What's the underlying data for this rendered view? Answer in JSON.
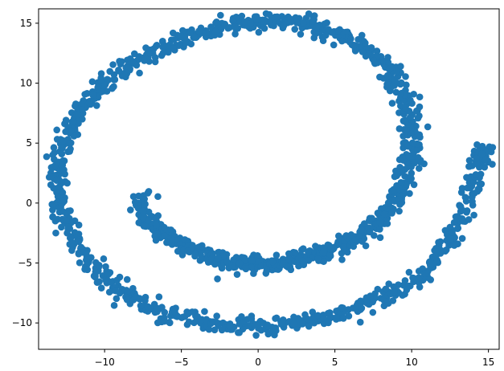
{
  "chart_data": {
    "type": "scatter",
    "title": "",
    "xlabel": "",
    "ylabel": "",
    "xlim": [
      -14.3,
      15.7
    ],
    "ylim": [
      -12.2,
      16.2
    ],
    "x_ticks": [
      -10,
      -5,
      0,
      5,
      10,
      15
    ],
    "y_ticks": [
      -10,
      -5,
      0,
      5,
      10,
      15
    ],
    "x_tick_labels": [
      "−10",
      "−5",
      "0",
      "5",
      "10",
      "15"
    ],
    "y_tick_labels": [
      "−10",
      "−5",
      "0",
      "5",
      "10",
      "15"
    ],
    "grid": false,
    "legend": false,
    "marker_color": "#1f77b4",
    "description_shape": "Swiss-roll spiral projection: an inner arc around (-8,-1)→(0,-5)→(7,-3), a large loop through (10,5), (0,15), (-12,8), (-12,-3), and an outer arc through (0,-10) ending near (14.5,4.5).",
    "series": [
      {
        "points": [
          [
            -7.5,
            0.8
          ],
          [
            -7.8,
            -0.2
          ],
          [
            -7.6,
            -1.0
          ],
          [
            -7.0,
            -1.6
          ],
          [
            -6.6,
            -2.0
          ],
          [
            -6.2,
            -2.5
          ],
          [
            -5.8,
            -2.9
          ],
          [
            -5.2,
            -3.3
          ],
          [
            -4.7,
            -3.6
          ],
          [
            -4.2,
            -4.0
          ],
          [
            -3.6,
            -4.3
          ],
          [
            -3.0,
            -4.5
          ],
          [
            -2.5,
            -4.7
          ],
          [
            -2.0,
            -4.9
          ],
          [
            -1.5,
            -5.0
          ],
          [
            -1.0,
            -5.1
          ],
          [
            -0.5,
            -5.2
          ],
          [
            0.0,
            -5.2
          ],
          [
            0.5,
            -5.2
          ],
          [
            1.0,
            -5.1
          ],
          [
            1.5,
            -5.0
          ],
          [
            2.0,
            -4.9
          ],
          [
            2.5,
            -4.7
          ],
          [
            3.0,
            -4.6
          ],
          [
            3.5,
            -4.4
          ],
          [
            4.0,
            -4.2
          ],
          [
            4.5,
            -4.0
          ],
          [
            5.0,
            -3.8
          ],
          [
            5.5,
            -3.5
          ],
          [
            6.0,
            -3.2
          ],
          [
            6.5,
            -2.8
          ],
          [
            7.0,
            -2.4
          ],
          [
            7.5,
            -2.0
          ],
          [
            8.0,
            -1.5
          ],
          [
            8.4,
            -0.9
          ],
          [
            8.8,
            -0.2
          ],
          [
            9.1,
            0.5
          ],
          [
            9.4,
            1.3
          ],
          [
            9.6,
            2.1
          ],
          [
            9.8,
            3.0
          ],
          [
            9.9,
            3.9
          ],
          [
            10.0,
            4.8
          ],
          [
            10.0,
            5.7
          ],
          [
            10.0,
            6.6
          ],
          [
            9.9,
            7.5
          ],
          [
            9.7,
            8.4
          ],
          [
            9.4,
            9.2
          ],
          [
            9.0,
            10.0
          ],
          [
            8.6,
            10.8
          ],
          [
            8.1,
            11.5
          ],
          [
            7.6,
            12.2
          ],
          [
            7.0,
            12.8
          ],
          [
            6.3,
            13.4
          ],
          [
            5.6,
            13.9
          ],
          [
            4.8,
            14.3
          ],
          [
            4.0,
            14.6
          ],
          [
            3.2,
            14.9
          ],
          [
            2.4,
            15.0
          ],
          [
            1.6,
            15.1
          ],
          [
            0.8,
            15.2
          ],
          [
            0.0,
            15.2
          ],
          [
            -0.8,
            15.1
          ],
          [
            -1.6,
            14.9
          ],
          [
            -2.4,
            14.7
          ],
          [
            -3.2,
            14.4
          ],
          [
            -4.0,
            14.1
          ],
          [
            -4.8,
            13.7
          ],
          [
            -5.6,
            13.3
          ],
          [
            -6.4,
            12.8
          ],
          [
            -7.2,
            12.3
          ],
          [
            -8.0,
            11.7
          ],
          [
            -8.8,
            11.0
          ],
          [
            -9.6,
            10.3
          ],
          [
            -10.3,
            9.5
          ],
          [
            -10.9,
            8.7
          ],
          [
            -11.5,
            7.8
          ],
          [
            -12.0,
            6.8
          ],
          [
            -12.4,
            5.8
          ],
          [
            -12.7,
            4.7
          ],
          [
            -12.9,
            3.6
          ],
          [
            -13.0,
            2.5
          ],
          [
            -13.0,
            1.4
          ],
          [
            -12.9,
            0.3
          ],
          [
            -12.7,
            -0.8
          ],
          [
            -12.4,
            -1.9
          ],
          [
            -12.0,
            -3.0
          ],
          [
            -11.5,
            -4.0
          ],
          [
            -10.9,
            -5.0
          ],
          [
            -10.2,
            -5.9
          ],
          [
            -9.5,
            -6.7
          ],
          [
            -8.7,
            -7.5
          ],
          [
            -7.8,
            -8.1
          ],
          [
            -6.9,
            -8.7
          ],
          [
            -6.0,
            -9.1
          ],
          [
            -5.0,
            -9.5
          ],
          [
            -4.0,
            -9.8
          ],
          [
            -3.0,
            -10.0
          ],
          [
            -2.0,
            -10.2
          ],
          [
            -1.0,
            -10.3
          ],
          [
            0.0,
            -10.3
          ],
          [
            1.0,
            -10.2
          ],
          [
            2.0,
            -10.1
          ],
          [
            3.0,
            -9.9
          ],
          [
            4.0,
            -9.6
          ],
          [
            5.0,
            -9.3
          ],
          [
            6.0,
            -8.9
          ],
          [
            7.0,
            -8.4
          ],
          [
            8.0,
            -7.9
          ],
          [
            9.0,
            -7.3
          ],
          [
            10.0,
            -6.6
          ],
          [
            10.8,
            -5.8
          ],
          [
            11.5,
            -4.9
          ],
          [
            12.1,
            -3.9
          ],
          [
            12.6,
            -2.8
          ],
          [
            13.1,
            -1.6
          ],
          [
            13.5,
            -0.3
          ],
          [
            13.9,
            1.0
          ],
          [
            14.2,
            2.3
          ],
          [
            14.4,
            3.5
          ],
          [
            14.6,
            4.3
          ]
        ]
      }
    ]
  }
}
